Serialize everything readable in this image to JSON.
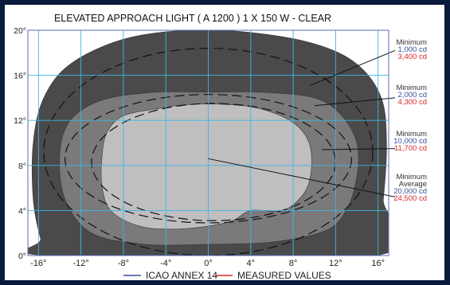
{
  "chart_data": {
    "type": "area",
    "title": "ELEVATED APPROACH LIGHT ( A 1200 )  1 X 150 W - CLEAR",
    "x_ticks": [
      "-16°",
      "-12°",
      "-8°",
      "-4°",
      "0°",
      "4°",
      "8°",
      "12°",
      "16°"
    ],
    "y_ticks": [
      "0°",
      "4°",
      "8°",
      "12°",
      "16°",
      "20°"
    ],
    "xlim": [
      -17,
      17
    ],
    "ylim": [
      0,
      20
    ],
    "grid": true,
    "legend": {
      "placement": "bottom",
      "items": [
        {
          "label": "ICAO ANNEX 14",
          "color": "#3a4f9a"
        },
        {
          "label": "MEASURED VALUES",
          "color": "#d8282a"
        }
      ]
    },
    "annotations": [
      {
        "label": "Minimum",
        "icao": "1,000 cd",
        "measured": "3,400 cd"
      },
      {
        "label": "Minimum",
        "icao": "2,000 cd",
        "measured": "4,300 cd"
      },
      {
        "label": "Minimum",
        "icao": "10,000 cd",
        "measured": "11,700 cd"
      },
      {
        "label": "Minimum\nAverage",
        "icao": "20,000 cd",
        "measured": "24,500 cd"
      }
    ],
    "series": [
      {
        "name": "3,400 cd",
        "fill": "#4a4a4a",
        "points": [
          [
            -15.8,
            1.5
          ],
          [
            -16.5,
            5
          ],
          [
            -16.5,
            10
          ],
          [
            -15.5,
            14
          ],
          [
            -13,
            17
          ],
          [
            -8,
            19.2
          ],
          [
            -2,
            20
          ],
          [
            4,
            19.8
          ],
          [
            10,
            18.8
          ],
          [
            14,
            17
          ],
          [
            16.3,
            14
          ],
          [
            16.8,
            10
          ],
          [
            16.5,
            5
          ],
          [
            15.8,
            0
          ],
          [
            -15,
            0
          ]
        ]
      },
      {
        "name": "4,300 cd",
        "fill": "#7a7a7a",
        "points": [
          [
            -14,
            9
          ],
          [
            -13,
            12
          ],
          [
            -10,
            13.8
          ],
          [
            -5,
            14.5
          ],
          [
            0,
            14.5
          ],
          [
            5,
            14.5
          ],
          [
            10,
            14
          ],
          [
            12.5,
            12.5
          ],
          [
            14,
            10
          ],
          [
            14,
            7
          ],
          [
            13,
            4
          ],
          [
            11,
            2.2
          ],
          [
            6,
            1.2
          ],
          [
            0,
            1
          ],
          [
            -6,
            1
          ],
          [
            -11,
            2
          ],
          [
            -13.5,
            5
          ]
        ]
      },
      {
        "name": "11,700 cd",
        "fill": "#bfbfbf",
        "points": [
          [
            -10,
            9
          ],
          [
            -9.5,
            11
          ],
          [
            -8,
            12.4
          ],
          [
            -5,
            13
          ],
          [
            -2,
            13.4
          ],
          [
            2,
            13.4
          ],
          [
            5,
            13
          ],
          [
            8,
            11.8
          ],
          [
            9.5,
            10
          ],
          [
            9.7,
            7.5
          ],
          [
            9,
            5.5
          ],
          [
            7,
            4
          ],
          [
            4,
            4
          ],
          [
            2,
            3
          ],
          [
            -2,
            2.4
          ],
          [
            -6,
            2.5
          ],
          [
            -9,
            3.8
          ],
          [
            -10,
            6
          ]
        ]
      },
      {
        "name": "1,000 cd",
        "kind": "ellipse",
        "cx": 0,
        "cy": 9.2,
        "rx": 15.5,
        "ry": 9.2
      },
      {
        "name": "2,000 cd",
        "kind": "ellipse",
        "cx": 0,
        "cy": 8.6,
        "rx": 13.5,
        "ry": 5.7
      },
      {
        "name": "10,000 cd",
        "kind": "ellipse",
        "cx": 0.5,
        "cy": 8.3,
        "rx": 11.5,
        "ry": 5.2
      }
    ],
    "leader_lines": [
      {
        "from": [
          9.6,
          15.1
        ],
        "to": [
          17.6,
          18.2
        ]
      },
      {
        "from": [
          10,
          13.3
        ],
        "to": [
          17.6,
          14
        ]
      },
      {
        "from": [
          10.7,
          9.4
        ],
        "to": [
          17.6,
          9.5
        ]
      },
      {
        "from": [
          0,
          8.6
        ],
        "to": [
          17.6,
          5.2
        ]
      }
    ]
  }
}
